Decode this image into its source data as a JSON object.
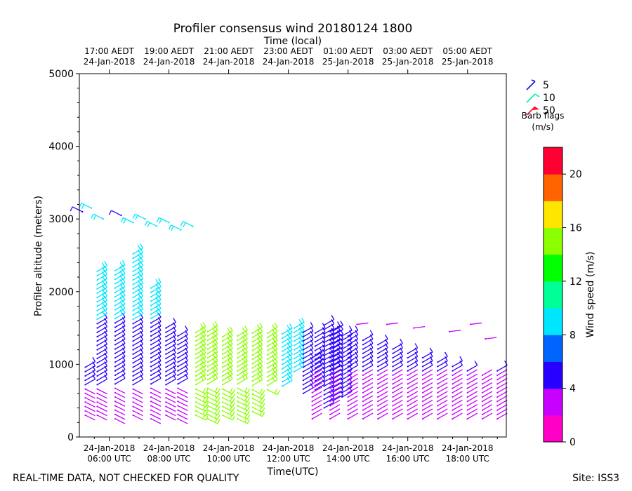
{
  "chart_data": {
    "type": "scatter",
    "title": "Profiler consensus wind 20180124 1800",
    "top_axis_title": "Time (local)",
    "xlabel": "Time(UTC)",
    "ylabel": "Profiler altitude (meters)",
    "xlim_utc_hours": [
      5.0,
      19.3
    ],
    "ylim": [
      0,
      5000
    ],
    "yticks": [
      0,
      1000,
      2000,
      3000,
      4000,
      5000
    ],
    "bottom_ticks": [
      {
        "hour": 6,
        "date": "24-Jan-2018",
        "time": "06:00 UTC"
      },
      {
        "hour": 8,
        "date": "24-Jan-2018",
        "time": "08:00 UTC"
      },
      {
        "hour": 10,
        "date": "24-Jan-2018",
        "time": "10:00 UTC"
      },
      {
        "hour": 12,
        "date": "24-Jan-2018",
        "time": "12:00 UTC"
      },
      {
        "hour": 14,
        "date": "24-Jan-2018",
        "time": "14:00 UTC"
      },
      {
        "hour": 16,
        "date": "24-Jan-2018",
        "time": "16:00 UTC"
      },
      {
        "hour": 18,
        "date": "24-Jan-2018",
        "time": "18:00 UTC"
      }
    ],
    "top_ticks": [
      {
        "hour": 6,
        "time": "17:00 AEDT",
        "date": "24-Jan-2018"
      },
      {
        "hour": 8,
        "time": "19:00 AEDT",
        "date": "24-Jan-2018"
      },
      {
        "hour": 10,
        "time": "21:00 AEDT",
        "date": "24-Jan-2018"
      },
      {
        "hour": 12,
        "time": "23:00 AEDT",
        "date": "24-Jan-2018"
      },
      {
        "hour": 14,
        "time": "01:00 AEDT",
        "date": "25-Jan-2018"
      },
      {
        "hour": 16,
        "time": "03:00 AEDT",
        "date": "25-Jan-2018"
      },
      {
        "hour": 18,
        "time": "05:00 AEDT",
        "date": "25-Jan-2018"
      }
    ],
    "barb_legend": {
      "title_line1": "Barb flags",
      "title_line2": "(m/s)",
      "items": [
        {
          "label": "5",
          "color": "#1010e0"
        },
        {
          "label": "10",
          "color": "#00f0a0"
        },
        {
          "label": "50",
          "color": "#ff1030"
        }
      ]
    },
    "colorbar": {
      "label": "Wind speed (m/s)",
      "min": 0,
      "max": 22,
      "ticks": [
        0,
        4,
        8,
        12,
        16,
        20
      ],
      "colors": [
        "#ff00c8",
        "#c800ff",
        "#2800ff",
        "#0064ff",
        "#00e6ff",
        "#00ff96",
        "#00ff00",
        "#8cff00",
        "#ffe600",
        "#ff6400",
        "#ff0032"
      ]
    },
    "series": [
      {
        "name": "early_upper_3000m",
        "hours": [
          5.1,
          5.4,
          5.8,
          6.4,
          6.8,
          7.2,
          7.6,
          8.0,
          8.4,
          8.8
        ],
        "heights": [
          3100,
          3150,
          3000,
          3050,
          2950,
          3000,
          2900,
          2950,
          2850,
          2900
        ],
        "speeds": [
          5,
          9,
          9,
          5,
          9,
          9,
          9,
          9,
          9,
          9
        ],
        "direction": "NW"
      },
      {
        "name": "early_columns",
        "hours": [
          5.2,
          5.6,
          6.2,
          6.8,
          7.4,
          7.9,
          8.3
        ],
        "top_m": [
          1000,
          2300,
          2300,
          2550,
          2050,
          1500,
          1400
        ],
        "bottom_m": [
          300,
          300,
          250,
          300,
          250,
          300,
          250
        ],
        "upper_speed": 9,
        "middle_speed": 5,
        "lower_speed": 3
      },
      {
        "name": "mid_green_columns",
        "hours": [
          8.9,
          9.3,
          9.8,
          10.3,
          10.8,
          11.3
        ],
        "top_m": [
          1450,
          1450,
          1400,
          1400,
          1450,
          1450
        ],
        "bottom_m": [
          300,
          250,
          300,
          250,
          350,
          650
        ],
        "upper_speed": 14,
        "lower_speed": 15
      },
      {
        "name": "cyan_columns_near_12utc",
        "hours": [
          11.8,
          12.2
        ],
        "top_m": [
          1450,
          1550
        ],
        "bottom_m": [
          700,
          900
        ],
        "speed": 9
      },
      {
        "name": "blue_dense_columns",
        "hours": [
          12.5,
          12.9,
          13.2,
          13.5,
          13.8
        ],
        "top_m": [
          1450,
          1450,
          1550,
          1500,
          1400
        ],
        "bottom_m": [
          600,
          650,
          400,
          500,
          550
        ],
        "speed": 5
      },
      {
        "name": "magenta_late_columns",
        "hours": [
          12.8,
          13.4,
          14.0,
          14.5,
          15.0,
          15.5,
          16.0,
          16.5,
          17.0,
          17.5,
          18.0,
          18.5,
          19.0
        ],
        "top_m": [
          1100,
          1450,
          1400,
          1350,
          1300,
          1250,
          1200,
          1100,
          1050,
          1000,
          950,
          900,
          950
        ],
        "bottom_m": [
          250,
          250,
          250,
          250,
          250,
          250,
          250,
          250,
          250,
          250,
          250,
          250,
          250
        ],
        "speed": 3,
        "mid_speed": 5
      },
      {
        "name": "magenta_isolated_upper",
        "hours": [
          14.3,
          15.3,
          16.2,
          17.4,
          18.1,
          18.6
        ],
        "heights": [
          1550,
          1550,
          1500,
          1450,
          1550,
          1350
        ],
        "speed": 2
      }
    ]
  },
  "footer": {
    "left_note": "REAL-TIME DATA, NOT CHECKED FOR QUALITY",
    "site": "Site: ISS3"
  }
}
